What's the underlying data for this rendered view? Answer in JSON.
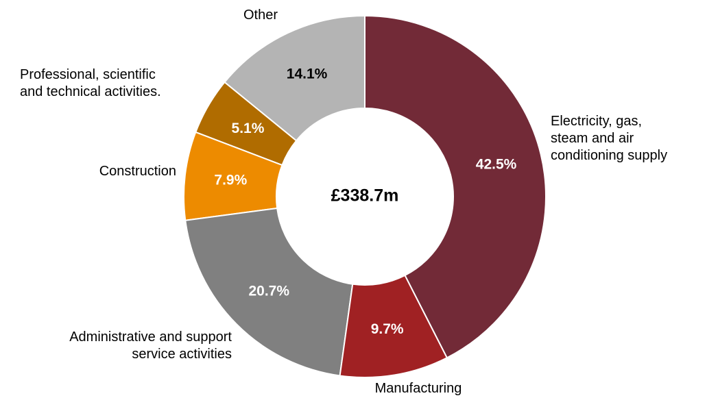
{
  "chart_data": {
    "type": "donut",
    "center_label": "£338.7m",
    "categories": [
      "Electricity, gas,\nsteam and air\nconditioning supply",
      "Manufacturing",
      "Administrative and support\nservice activities",
      "Construction",
      "Professional, scientific\nand technical activities.",
      "Other"
    ],
    "values": [
      42.5,
      9.7,
      20.7,
      7.9,
      5.1,
      14.1
    ],
    "value_labels": [
      "42.5%",
      "9.7%",
      "20.7%",
      "7.9%",
      "5.1%",
      "14.1%"
    ],
    "colors": [
      "#722a37",
      "#a02123",
      "#808080",
      "#ed8b00",
      "#b06c00",
      "#b4b4b4"
    ]
  }
}
